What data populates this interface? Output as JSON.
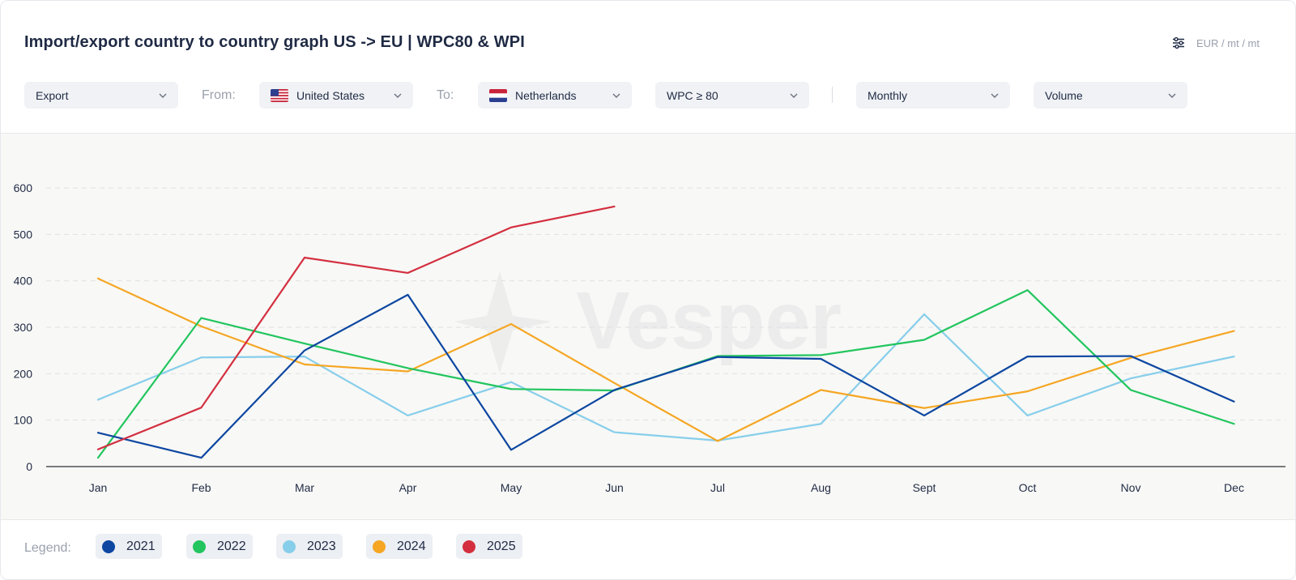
{
  "header": {
    "title": "Import/export country to country graph US -> EU | WPC80 & WPI",
    "unit_label": "EUR / mt / mt",
    "settings_icon": "sliders-icon"
  },
  "filters": {
    "direction": "Export",
    "from_label": "From:",
    "from_value": "United States",
    "to_label": "To:",
    "to_value": "Netherlands",
    "grade": "WPC ≥ 80",
    "frequency": "Monthly",
    "metric": "Volume"
  },
  "watermark": "Vesper",
  "legend": {
    "label": "Legend:"
  },
  "chart_data": {
    "type": "line",
    "title": "Import/export country to country graph US -> EU | WPC80 & WPI",
    "xlabel": "",
    "ylabel": "",
    "categories": [
      "Jan",
      "Feb",
      "Mar",
      "Apr",
      "May",
      "Jun",
      "Jul",
      "Aug",
      "Sept",
      "Oct",
      "Nov",
      "Dec"
    ],
    "yticks": [
      0,
      100,
      200,
      300,
      400,
      500,
      600
    ],
    "ylim": [
      0,
      600
    ],
    "grid": true,
    "legend_position": "bottom-left",
    "series": [
      {
        "name": "2021",
        "color": "#0d47a1",
        "values": [
          73,
          19,
          250,
          370,
          36,
          165,
          236,
          232,
          110,
          237,
          238,
          140
        ]
      },
      {
        "name": "2022",
        "color": "#22c55e",
        "values": [
          19,
          320,
          265,
          212,
          167,
          164,
          238,
          240,
          273,
          380,
          165,
          92
        ]
      },
      {
        "name": "2023",
        "color": "#87ceeb",
        "values": [
          144,
          235,
          237,
          110,
          182,
          74,
          56,
          92,
          328,
          110,
          190,
          237
        ]
      },
      {
        "name": "2024",
        "color": "#f5a623",
        "values": [
          405,
          302,
          220,
          205,
          307,
          180,
          55,
          165,
          126,
          162,
          234,
          292
        ]
      },
      {
        "name": "2025",
        "color": "#d32f3f",
        "values": [
          37,
          127,
          450,
          417,
          515,
          560,
          null,
          null,
          null,
          null,
          null,
          null
        ]
      }
    ]
  }
}
